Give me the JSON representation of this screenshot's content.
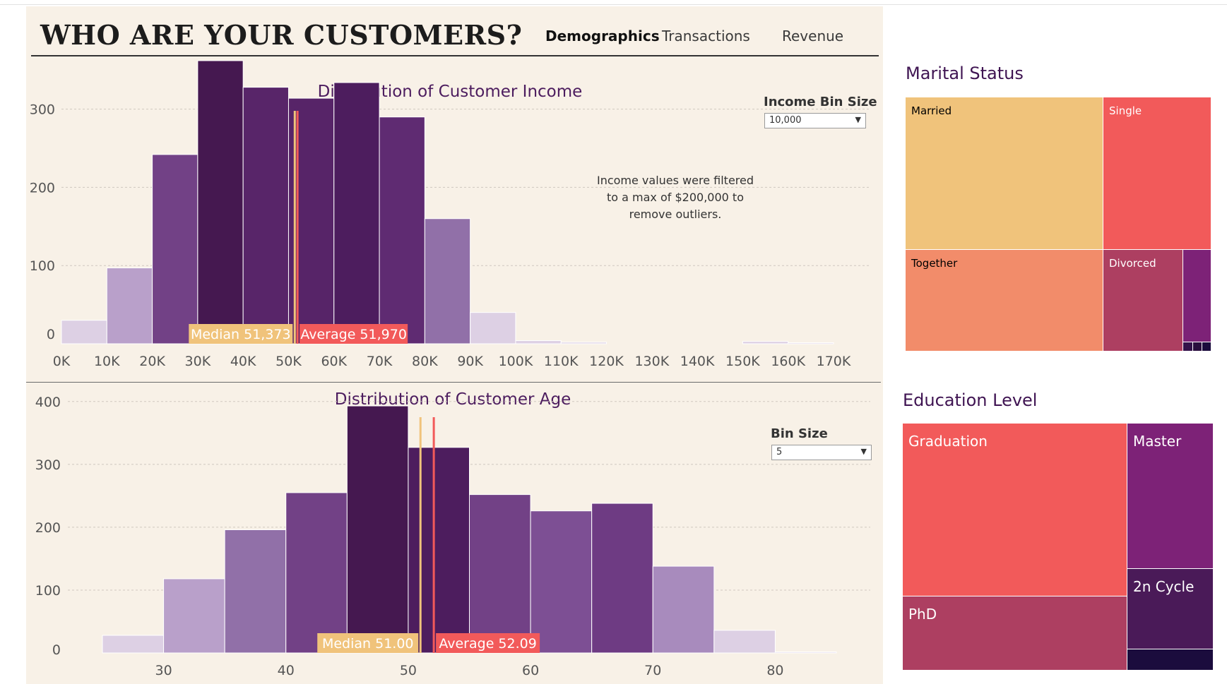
{
  "header": {
    "title": "WHO ARE YOUR CUSTOMERS?",
    "tabs": [
      "Demographics",
      "Transactions",
      "Revenue"
    ],
    "active_tab": "Demographics"
  },
  "income_controls": {
    "label": "Income Bin Size",
    "value": "10,000"
  },
  "age_controls": {
    "label": "Bin Size",
    "value": "5"
  },
  "colors": {
    "bg": "#f8f1e7",
    "median": "#f0c37b",
    "average": "#f25a5a",
    "title": "#4c1c5e"
  },
  "chart_data": [
    {
      "type": "bar",
      "title": "Distribution of Customer Income",
      "xlabel": "",
      "ylabel": "",
      "ylim": [
        0,
        380
      ],
      "xlim": [
        0,
        170000
      ],
      "bin_size": 10000,
      "bins_start": [
        0,
        10000,
        20000,
        30000,
        40000,
        50000,
        60000,
        70000,
        80000,
        90000,
        100000,
        110000,
        120000,
        130000,
        140000,
        150000,
        160000
      ],
      "values": [
        30,
        97,
        242,
        362,
        328,
        314,
        334,
        290,
        160,
        40,
        4,
        2,
        0,
        0,
        0,
        3,
        1
      ],
      "bar_colors": [
        "#ddd0e4",
        "#b9a0ca",
        "#724186",
        "#451850",
        "#582569",
        "#572468",
        "#4d1d5e",
        "#5f2b72",
        "#9170a8",
        "#ddd0e4",
        "#ddd0e4",
        "#ddd0e4",
        "#ddd0e4",
        "#ddd0e4",
        "#ddd0e4",
        "#ddd0e4",
        "#ddd0e4"
      ],
      "x_ticks": [
        "0K",
        "10K",
        "20K",
        "30K",
        "40K",
        "50K",
        "60K",
        "70K",
        "80K",
        "90K",
        "100K",
        "110K",
        "120K",
        "130K",
        "140K",
        "150K",
        "160K",
        "170K"
      ],
      "y_ticks": [
        0,
        100,
        200,
        300
      ],
      "median": 51373,
      "average": 51970,
      "median_label": "Median 51,373",
      "average_label": "Average 51,970",
      "annotation": [
        "Income values were filtered",
        "to a max of $200,000 to",
        "remove outliers."
      ]
    },
    {
      "type": "bar",
      "title": "Distribution of Customer Age",
      "xlabel": "",
      "ylabel": "",
      "ylim": [
        0,
        420
      ],
      "xlim": [
        25,
        85
      ],
      "bin_size": 5,
      "bins_start": [
        25,
        30,
        35,
        40,
        45,
        50,
        55,
        60,
        65,
        70,
        75,
        80
      ],
      "values": [
        28,
        118,
        196,
        255,
        393,
        327,
        252,
        226,
        238,
        138,
        36,
        1
      ],
      "bar_colors": [
        "#ddd0e4",
        "#b9a0ca",
        "#9170a8",
        "#724186",
        "#451850",
        "#4d1d5e",
        "#724186",
        "#7d4f94",
        "#6e3b83",
        "#a88bbd",
        "#ddd0e4",
        "#ddd0e4"
      ],
      "x_ticks": [
        30,
        40,
        50,
        60,
        70,
        80
      ],
      "y_ticks": [
        0,
        100,
        200,
        300,
        400
      ],
      "median": 51.0,
      "average": 52.09,
      "median_label": "Median  51.00",
      "average_label": "Average  52.09"
    },
    {
      "type": "treemap",
      "title": "Marital Status",
      "items": [
        {
          "label": "Married",
          "color": "#f0c37b"
        },
        {
          "label": "Single",
          "color": "#f25a5a"
        },
        {
          "label": "Together",
          "color": "#f28c6a"
        },
        {
          "label": "Divorced",
          "color": "#ad3f61"
        },
        {
          "label": "",
          "color": "#7d2277"
        }
      ]
    },
    {
      "type": "treemap",
      "title": "Education Level",
      "items": [
        {
          "label": "Graduation",
          "color": "#f25a5a"
        },
        {
          "label": "Master",
          "color": "#7d2277"
        },
        {
          "label": "PhD",
          "color": "#ad3f61"
        },
        {
          "label": "2n Cycle",
          "color": "#4a1a58"
        },
        {
          "label": "",
          "color": "#1b0c3d"
        }
      ]
    }
  ]
}
